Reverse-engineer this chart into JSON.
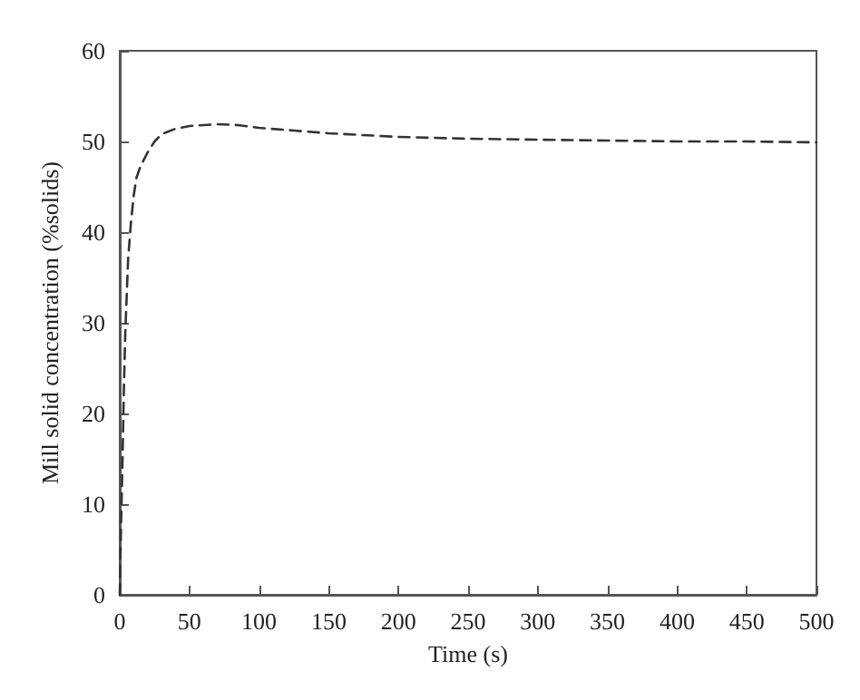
{
  "chart_data": {
    "type": "line",
    "xlabel": "Time (s)",
    "ylabel": "Mill solid concentration (%solids)",
    "x": [
      0,
      1,
      2,
      3,
      4,
      6,
      8,
      10,
      12,
      15,
      20,
      25,
      30,
      40,
      50,
      60,
      70,
      85,
      100,
      125,
      150,
      200,
      250,
      300,
      350,
      400,
      450,
      500
    ],
    "series": [
      {
        "color": "#333333",
        "values": [
          0,
          8,
          15,
          23,
          29,
          37,
          41,
          44,
          46,
          47.3,
          48.8,
          50,
          50.8,
          51.4,
          51.7,
          51.8,
          51.9,
          51.8,
          51.5,
          51.2,
          50.9,
          50.5,
          50.3,
          50.2,
          50.1,
          50,
          50,
          49.9
        ]
      }
    ],
    "xlim": [
      0,
      500
    ],
    "xticks": [
      0,
      50,
      100,
      150,
      200,
      250,
      300,
      350,
      400,
      450,
      500
    ],
    "ylim": [
      0,
      60
    ],
    "yticks": [
      0,
      10,
      20,
      30,
      40,
      50,
      60
    ],
    "grid": false,
    "marker": "none",
    "line_style": "dashed"
  }
}
